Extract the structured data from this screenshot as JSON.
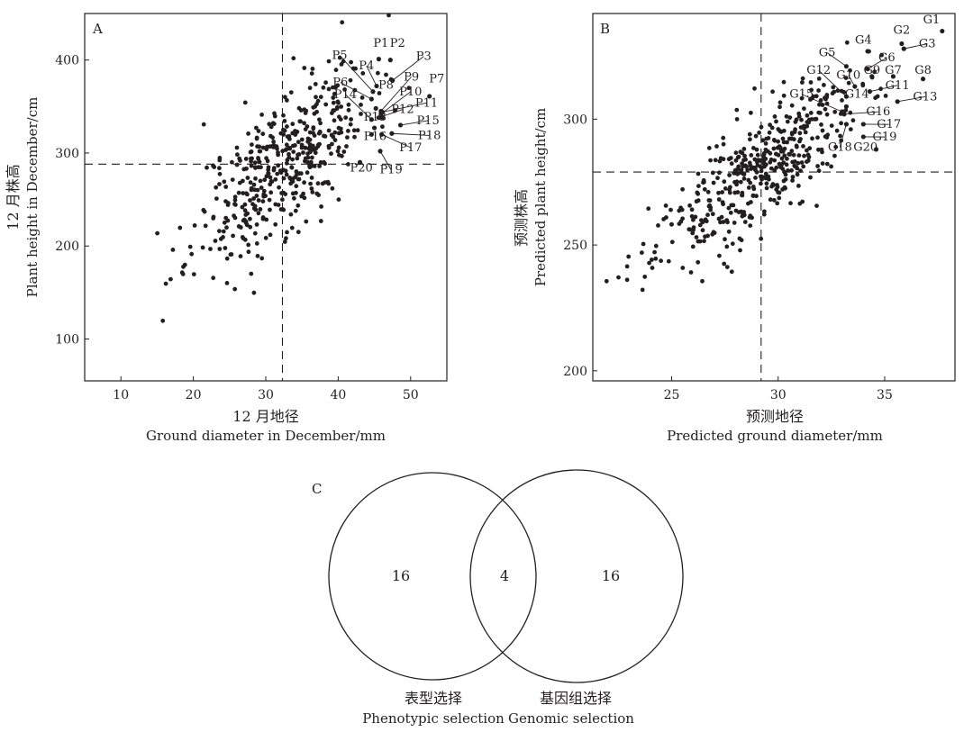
{
  "chart_data": [
    {
      "type": "scatter",
      "panel_label": "A",
      "xlabel_cn": "12 月地径",
      "xlabel_en": "Ground diameter in December/mm",
      "ylabel_cn": "12 月株高",
      "ylabel_en": "Plant height in December/cm",
      "xlim": [
        5,
        55
      ],
      "ylim": [
        55,
        450
      ],
      "xticks": [
        10,
        20,
        30,
        40,
        50
      ],
      "yticks": [
        100,
        200,
        300,
        400
      ],
      "xtick_labels": [
        "10",
        "20",
        "30",
        "40",
        "50"
      ],
      "ytick_labels": [
        "100",
        "200",
        "300",
        "400"
      ],
      "ref_x": 32.3,
      "ref_y": 288,
      "seed": 11,
      "n_points": 460,
      "cloud": {
        "mean_x": 32.5,
        "mean_y": 290,
        "sd_x": 6.2,
        "slope": 6.3,
        "sd_resid": 38
      },
      "highlighted": [
        {
          "id": "P1",
          "x": 45.6,
          "y": 401,
          "label_x": 45.9,
          "label_y": 414
        },
        {
          "id": "P2",
          "x": 47.2,
          "y": 400,
          "label_x": 48.2,
          "label_y": 414
        },
        {
          "id": "P3",
          "x": 47.5,
          "y": 378,
          "label_x": 51.8,
          "label_y": 400,
          "leader": true
        },
        {
          "id": "P4",
          "x": 45.3,
          "y": 372,
          "label_x": 43.9,
          "label_y": 390,
          "leader": true
        },
        {
          "id": "P5",
          "x": 44.8,
          "y": 366,
          "label_x": 40.2,
          "label_y": 401,
          "leader": true
        },
        {
          "id": "P6",
          "x": 44.6,
          "y": 358,
          "label_x": 40.3,
          "label_y": 372,
          "leader": true
        },
        {
          "id": "P7",
          "x": 52.6,
          "y": 361,
          "label_x": 53.6,
          "label_y": 376
        },
        {
          "id": "P8",
          "x": 45.2,
          "y": 348,
          "label_x": 46.6,
          "label_y": 369
        },
        {
          "id": "P9",
          "x": 45.9,
          "y": 345,
          "label_x": 50.1,
          "label_y": 378,
          "leader": true
        },
        {
          "id": "P10",
          "x": 45.9,
          "y": 342,
          "label_x": 50.0,
          "label_y": 362,
          "leader": true
        },
        {
          "id": "P11",
          "x": 46.1,
          "y": 344,
          "label_x": 52.2,
          "label_y": 350,
          "leader": true
        },
        {
          "id": "P12",
          "x": 45.6,
          "y": 338,
          "label_x": 48.9,
          "label_y": 343,
          "leader": true
        },
        {
          "id": "P13",
          "x": 45.0,
          "y": 327,
          "label_x": 45.1,
          "label_y": 335
        },
        {
          "id": "P14",
          "x": 44.6,
          "y": 336,
          "label_x": 41.0,
          "label_y": 359,
          "leader": true
        },
        {
          "id": "P15",
          "x": 48.6,
          "y": 330,
          "label_x": 52.4,
          "label_y": 331,
          "leader": true
        },
        {
          "id": "P16",
          "x": 44.6,
          "y": 320,
          "label_x": 45.1,
          "label_y": 314
        },
        {
          "id": "P17",
          "x": 46.0,
          "y": 320,
          "label_x": 50.0,
          "label_y": 302,
          "leader": true
        },
        {
          "id": "P18",
          "x": 47.4,
          "y": 321,
          "label_x": 52.6,
          "label_y": 315,
          "leader": true
        },
        {
          "id": "P19",
          "x": 45.8,
          "y": 302,
          "label_x": 47.3,
          "label_y": 278,
          "leader": true
        },
        {
          "id": "P20",
          "x": 43.0,
          "y": 290,
          "label_x": 43.2,
          "label_y": 280
        }
      ]
    },
    {
      "type": "scatter",
      "panel_label": "B",
      "xlabel_cn": "预测地径",
      "xlabel_en": "Predicted ground diameter/mm",
      "ylabel_cn": "预测株高",
      "ylabel_en": "Predicted plant height/cm",
      "xlim": [
        21.3,
        38.3
      ],
      "ylim": [
        196,
        342
      ],
      "xticks": [
        25,
        30,
        35
      ],
      "yticks": [
        200,
        250,
        300
      ],
      "xtick_labels": [
        "25",
        "30",
        "35"
      ],
      "ytick_labels": [
        "200",
        "250",
        "300"
      ],
      "ref_x": 29.2,
      "ref_y": 279,
      "seed": 23,
      "n_points": 460,
      "cloud": {
        "mean_x": 29.0,
        "mean_y": 279,
        "sd_x": 2.4,
        "slope": 6.0,
        "sd_resid": 11
      },
      "highlighted": [
        {
          "id": "G1",
          "x": 37.7,
          "y": 335,
          "label_x": 37.2,
          "label_y": 338
        },
        {
          "id": "G2",
          "x": 35.8,
          "y": 330,
          "label_x": 35.8,
          "label_y": 334
        },
        {
          "id": "G3",
          "x": 35.9,
          "y": 328,
          "label_x": 37.0,
          "label_y": 328.5,
          "leader": true
        },
        {
          "id": "G4",
          "x": 34.2,
          "y": 327,
          "label_x": 34.0,
          "label_y": 330
        },
        {
          "id": "G5",
          "x": 33.2,
          "y": 321,
          "label_x": 32.3,
          "label_y": 325,
          "leader": true
        },
        {
          "id": "G6",
          "x": 34.2,
          "y": 320,
          "label_x": 35.1,
          "label_y": 323,
          "leader": true
        },
        {
          "id": "G7",
          "x": 35.4,
          "y": 317,
          "label_x": 35.4,
          "label_y": 318
        },
        {
          "id": "G8",
          "x": 36.8,
          "y": 316,
          "label_x": 36.8,
          "label_y": 318
        },
        {
          "id": "G9",
          "x": 34.4,
          "y": 317,
          "label_x": 34.4,
          "label_y": 318
        },
        {
          "id": "G10",
          "x": 33.6,
          "y": 313,
          "label_x": 33.3,
          "label_y": 316,
          "leader": true
        },
        {
          "id": "G11",
          "x": 34.3,
          "y": 311,
          "label_x": 35.6,
          "label_y": 312,
          "leader": true
        },
        {
          "id": "G12",
          "x": 33.2,
          "y": 309,
          "label_x": 31.9,
          "label_y": 318,
          "leader": true
        },
        {
          "id": "G13",
          "x": 35.6,
          "y": 307,
          "label_x": 36.9,
          "label_y": 307.5,
          "leader": true
        },
        {
          "id": "G14",
          "x": 33.2,
          "y": 305,
          "label_x": 33.7,
          "label_y": 308.5
        },
        {
          "id": "G15",
          "x": 33.0,
          "y": 303,
          "label_x": 31.1,
          "label_y": 308.5,
          "leader": true
        },
        {
          "id": "G16",
          "x": 33.1,
          "y": 302,
          "label_x": 34.7,
          "label_y": 301.5,
          "leader": true
        },
        {
          "id": "G17",
          "x": 34.0,
          "y": 298,
          "label_x": 35.2,
          "label_y": 296.5,
          "leader": true
        },
        {
          "id": "G18",
          "x": 33.2,
          "y": 298,
          "label_x": 32.9,
          "label_y": 287.5,
          "leader": true
        },
        {
          "id": "G19",
          "x": 34.0,
          "y": 293,
          "label_x": 35.0,
          "label_y": 291.5,
          "leader": true
        },
        {
          "id": "G20",
          "x": 34.6,
          "y": 288,
          "label_x": 34.1,
          "label_y": 287.5
        }
      ]
    }
  ],
  "venn": {
    "panel_label": "C",
    "left_only": "16",
    "intersection": "4",
    "right_only": "16",
    "left_label_cn": "表型选择",
    "left_label_en": "Phenotypic selection",
    "right_label_cn": "基因组选择",
    "right_label_en": "Genomic selection"
  }
}
